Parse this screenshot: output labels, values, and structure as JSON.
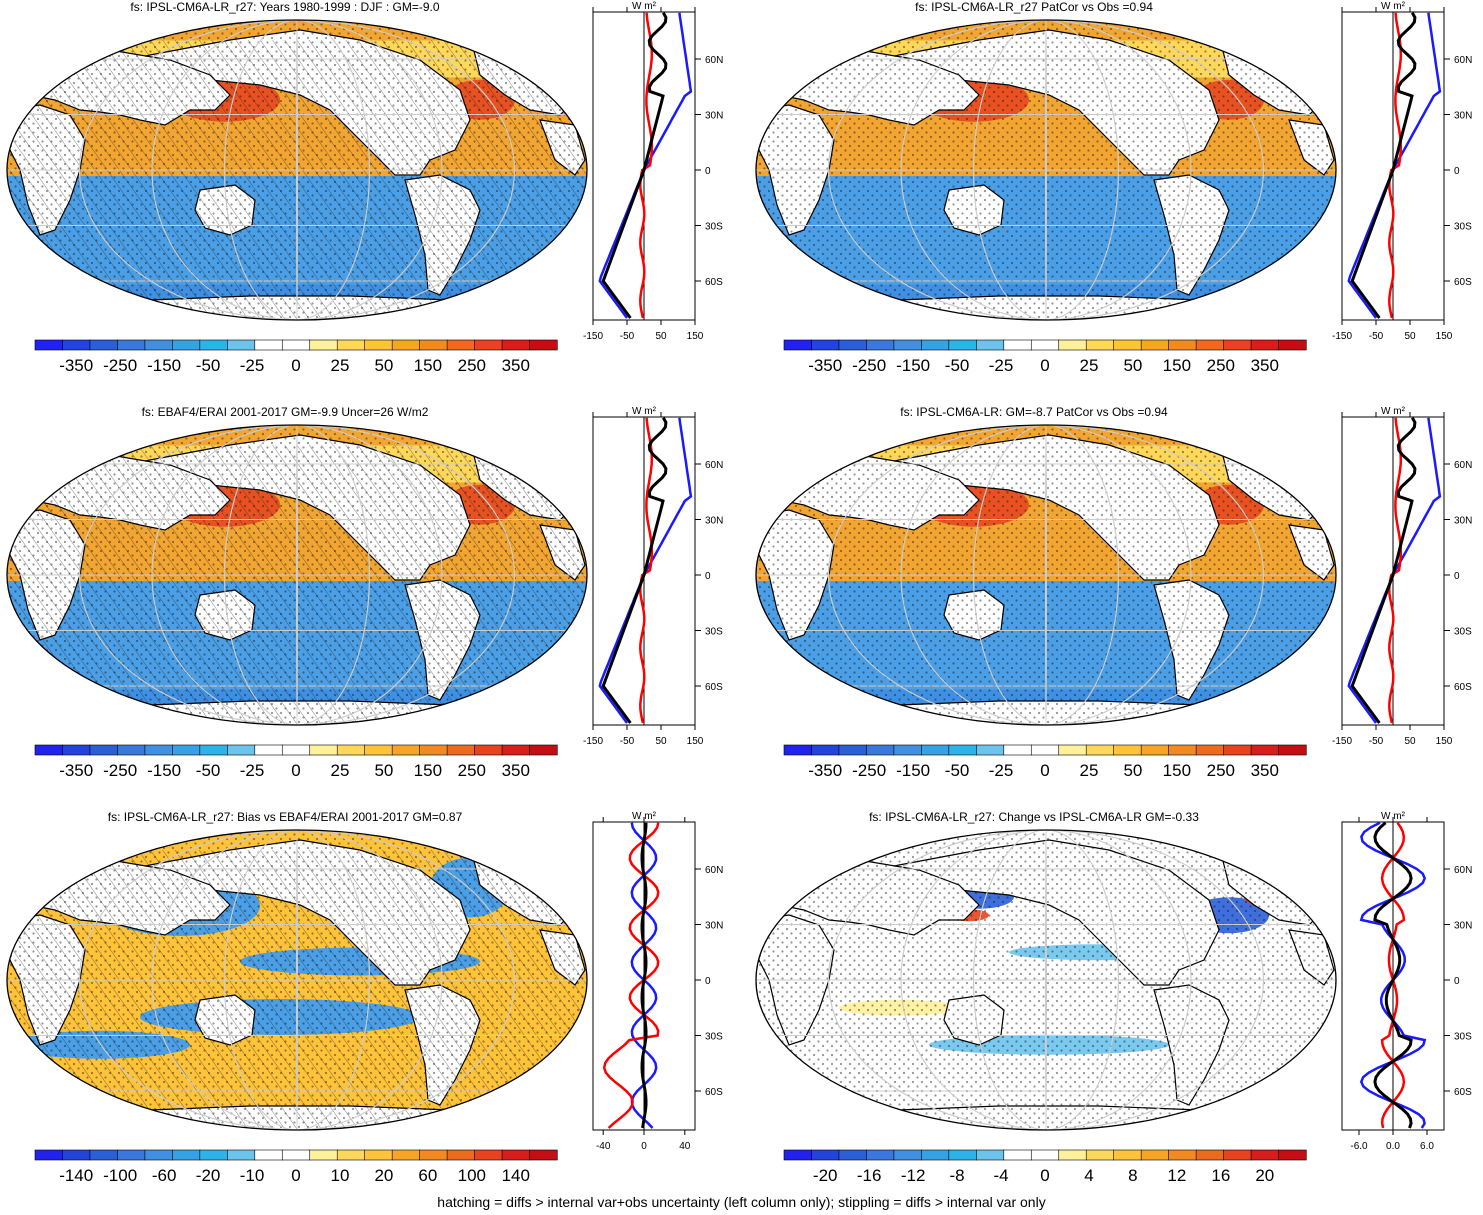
{
  "colors": {
    "ocean_neg": "#4a9fe6",
    "ocean_pos": "#f2a531",
    "ocean_pos_strong": "#e8421e",
    "land": "#ffffff",
    "line_model": "#000000",
    "line_blue": "#1a1aff",
    "line_red": "#ff0000",
    "palette_std": [
      "#2222ee",
      "#2244dd",
      "#2a5fd8",
      "#3a78dd",
      "#3f8fe2",
      "#36a2e6",
      "#2cb3ea",
      "#6cc3ec",
      "#ffffff",
      "#ffffff",
      "#fff19a",
      "#ffd85a",
      "#ffc33a",
      "#f8a526",
      "#f38a1f",
      "#ee6a1c",
      "#e8421e",
      "#d81e1a",
      "#c40e14"
    ],
    "palette_bias": [
      "#2222ee",
      "#2244dd",
      "#2a5fd8",
      "#3a78dd",
      "#3f8fe2",
      "#36a2e6",
      "#2cb3ea",
      "#6cc3ec",
      "#ffffff",
      "#ffffff",
      "#fff19a",
      "#ffd85a",
      "#ffc33a",
      "#f8a526",
      "#f38a1f",
      "#ee6a1c",
      "#e8421e",
      "#d81e1a",
      "#c40e14"
    ]
  },
  "panels": [
    {
      "id": "p1",
      "title": "fs: IPSL-CM6A-LR_r27: Years 1980-1999 : DJF : GM=-9.0",
      "map_style": "mean",
      "hatching": true,
      "colorbar_ticks": [
        "-350",
        "-250",
        "-150",
        "-50",
        "-25",
        "0",
        "25",
        "50",
        "150",
        "250",
        "350"
      ],
      "zonal_xticks": [
        "-150",
        "-50",
        "50",
        "150"
      ],
      "zonal_xrange": [
        -150,
        150
      ],
      "zonal_unit": "W m²"
    },
    {
      "id": "p2",
      "title": "fs: IPSL-CM6A-LR_r27 PatCor vs Obs =0.94",
      "map_style": "mean",
      "hatching": false,
      "colorbar_ticks": [
        "-350",
        "-250",
        "-150",
        "-50",
        "-25",
        "0",
        "25",
        "50",
        "150",
        "250",
        "350"
      ],
      "zonal_xticks": [
        "-150",
        "-50",
        "50",
        "150"
      ],
      "zonal_xrange": [
        -150,
        150
      ],
      "zonal_unit": "W m²"
    },
    {
      "id": "p3",
      "title": "fs: EBAF4/ERAI 2001-2017 GM=-9.9 Uncer=26 W/m2",
      "map_style": "mean",
      "hatching": true,
      "colorbar_ticks": [
        "-350",
        "-250",
        "-150",
        "-50",
        "-25",
        "0",
        "25",
        "50",
        "150",
        "250",
        "350"
      ],
      "zonal_xticks": [
        "-150",
        "-50",
        "50",
        "150"
      ],
      "zonal_xrange": [
        -150,
        150
      ],
      "zonal_unit": "W m²"
    },
    {
      "id": "p4",
      "title": "fs: IPSL-CM6A-LR: GM=-8.7 PatCor vs Obs =0.94",
      "map_style": "mean",
      "hatching": false,
      "colorbar_ticks": [
        "-350",
        "-250",
        "-150",
        "-50",
        "-25",
        "0",
        "25",
        "50",
        "150",
        "250",
        "350"
      ],
      "zonal_xticks": [
        "-150",
        "-50",
        "50",
        "150"
      ],
      "zonal_xrange": [
        -150,
        150
      ],
      "zonal_unit": "W m²"
    },
    {
      "id": "p5",
      "title": "fs: IPSL-CM6A-LR_r27: Bias vs EBAF4/ERAI 2001-2017 GM=0.87",
      "map_style": "bias",
      "hatching": true,
      "colorbar_ticks": [
        "-140",
        "-100",
        "-60",
        "-20",
        "-10",
        "0",
        "10",
        "20",
        "60",
        "100",
        "140"
      ],
      "zonal_xticks": [
        "-40",
        "0",
        "40"
      ],
      "zonal_xrange": [
        -50,
        50
      ],
      "zonal_unit": "W m²"
    },
    {
      "id": "p6",
      "title": "fs: IPSL-CM6A-LR_r27: Change vs IPSL-CM6A-LR GM=-0.33",
      "map_style": "change",
      "hatching": false,
      "colorbar_ticks": [
        "-20",
        "-16",
        "-12",
        "-8",
        "-4",
        "0",
        "4",
        "8",
        "12",
        "16",
        "20"
      ],
      "zonal_xticks": [
        "-6.0",
        "0.0",
        "6.0"
      ],
      "zonal_xrange": [
        -9,
        9
      ],
      "zonal_unit": "W m²"
    }
  ],
  "lat_labels": [
    "60N",
    "30N",
    "0",
    "30S",
    "60S"
  ],
  "footer": "hatching = diffs > internal var+obs uncertainty (left column only); stippling = diffs > internal var only"
}
